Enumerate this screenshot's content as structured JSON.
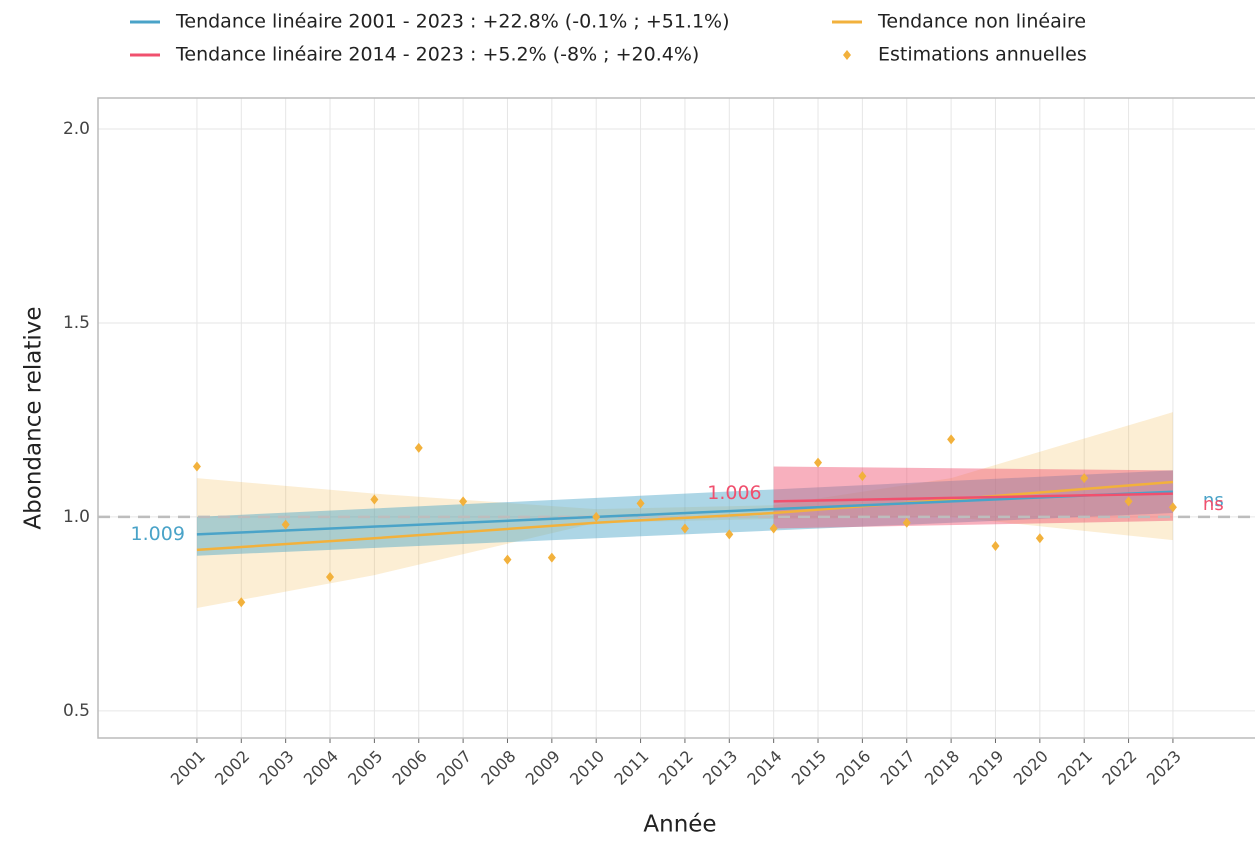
{
  "chart_data": {
    "type": "line",
    "x_label": "Année",
    "y_label": "Abondance relative",
    "xlim": [
      1998.77,
      2024.85
    ],
    "ylim": [
      0.43,
      2.08
    ],
    "xticks": [
      2001,
      2002,
      2003,
      2004,
      2005,
      2006,
      2007,
      2008,
      2009,
      2010,
      2011,
      2012,
      2013,
      2014,
      2015,
      2016,
      2017,
      2018,
      2019,
      2020,
      2021,
      2022,
      2023
    ],
    "yticks": [
      0.5,
      {
        "value": 1,
        "label": "1.0"
      },
      1.5,
      {
        "value": 2,
        "label": "2.0"
      }
    ],
    "grid": true,
    "reference_line": 1,
    "series": [
      {
        "name": "Tendance linéaire 2001 - 2023 : +22.8% (-0.1% ; +51.1%)",
        "kind": "line",
        "color": "#4aa3c8",
        "x": [
          2001,
          2023
        ],
        "values": [
          0.955,
          1.065
        ],
        "lower": [
          0.9,
          1.01
        ],
        "upper": [
          1.0,
          1.12
        ],
        "label": "1.009",
        "significance": "ns"
      },
      {
        "name": "Tendance linéaire 2014 - 2023 : +5.2% (-8% ; +20.4%)",
        "kind": "line",
        "color": "#f0506e",
        "x": [
          2014,
          2023
        ],
        "values": [
          1.04,
          1.06
        ],
        "lower": [
          0.97,
          0.99
        ],
        "upper": [
          1.13,
          1.12
        ],
        "label": "1.006",
        "significance": "ns"
      },
      {
        "name": "Tendance non linéaire",
        "kind": "line",
        "color": "#f2b13c",
        "x": [
          2001,
          2005,
          2010,
          2014,
          2018,
          2023
        ],
        "values": [
          0.915,
          0.945,
          0.985,
          1.01,
          1.045,
          1.09
        ],
        "lower": [
          0.765,
          0.85,
          0.985,
          0.995,
          1.0,
          0.94
        ],
        "upper": [
          1.1,
          1.06,
          1.02,
          1.03,
          1.1,
          1.27
        ]
      },
      {
        "name": "Estimations annuelles",
        "kind": "scatter",
        "color": "#f2b13c",
        "x": [
          2001,
          2002,
          2003,
          2004,
          2005,
          2006,
          2007,
          2008,
          2009,
          2010,
          2011,
          2012,
          2013,
          2014,
          2015,
          2016,
          2017,
          2018,
          2019,
          2020,
          2021,
          2022,
          2023
        ],
        "values": [
          1.13,
          0.78,
          0.98,
          0.845,
          1.045,
          1.178,
          1.04,
          0.89,
          0.895,
          1.0,
          1.035,
          0.97,
          0.955,
          0.97,
          1.14,
          1.105,
          0.985,
          1.2,
          0.925,
          0.945,
          1.1,
          1.04,
          1.025
        ]
      }
    ]
  }
}
